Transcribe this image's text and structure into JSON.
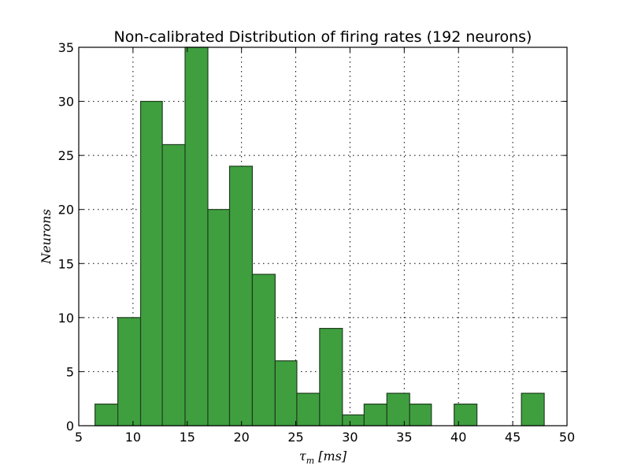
{
  "chart_data": {
    "type": "bar",
    "title": "Non-calibrated Distribution of firing rates (192 neurons)",
    "xlabel": "τm [ms]",
    "xlabel_main": "τ",
    "xlabel_sub": "m",
    "xlabel_rest": " [ms]",
    "ylabel": "Neurons",
    "xlim": [
      5,
      50
    ],
    "ylim": [
      0,
      35
    ],
    "xticks": [
      5,
      10,
      15,
      20,
      25,
      30,
      35,
      40,
      45,
      50
    ],
    "yticks": [
      0,
      5,
      10,
      15,
      20,
      25,
      30,
      35
    ],
    "grid": true,
    "bar_color": "#3f9f3f",
    "edge_color": "#1f3f1f",
    "bins": [
      {
        "x0": 6.5,
        "x1": 8.6,
        "value": 2
      },
      {
        "x0": 8.6,
        "x1": 10.7,
        "value": 10
      },
      {
        "x0": 10.7,
        "x1": 12.7,
        "value": 30
      },
      {
        "x0": 12.7,
        "x1": 14.8,
        "value": 26
      },
      {
        "x0": 14.8,
        "x1": 16.9,
        "value": 35
      },
      {
        "x0": 16.9,
        "x1": 18.9,
        "value": 20
      },
      {
        "x0": 18.9,
        "x1": 21.0,
        "value": 24
      },
      {
        "x0": 21.0,
        "x1": 23.1,
        "value": 14
      },
      {
        "x0": 23.1,
        "x1": 25.1,
        "value": 6
      },
      {
        "x0": 25.1,
        "x1": 27.2,
        "value": 3
      },
      {
        "x0": 27.2,
        "x1": 29.3,
        "value": 9
      },
      {
        "x0": 29.3,
        "x1": 31.3,
        "value": 1
      },
      {
        "x0": 31.3,
        "x1": 33.4,
        "value": 2
      },
      {
        "x0": 33.4,
        "x1": 35.5,
        "value": 3
      },
      {
        "x0": 35.5,
        "x1": 37.5,
        "value": 2
      },
      {
        "x0": 37.5,
        "x1": 39.6,
        "value": 0
      },
      {
        "x0": 39.6,
        "x1": 41.7,
        "value": 2
      },
      {
        "x0": 41.7,
        "x1": 43.7,
        "value": 0
      },
      {
        "x0": 43.7,
        "x1": 45.8,
        "value": 0
      },
      {
        "x0": 45.8,
        "x1": 47.9,
        "value": 3
      }
    ]
  }
}
